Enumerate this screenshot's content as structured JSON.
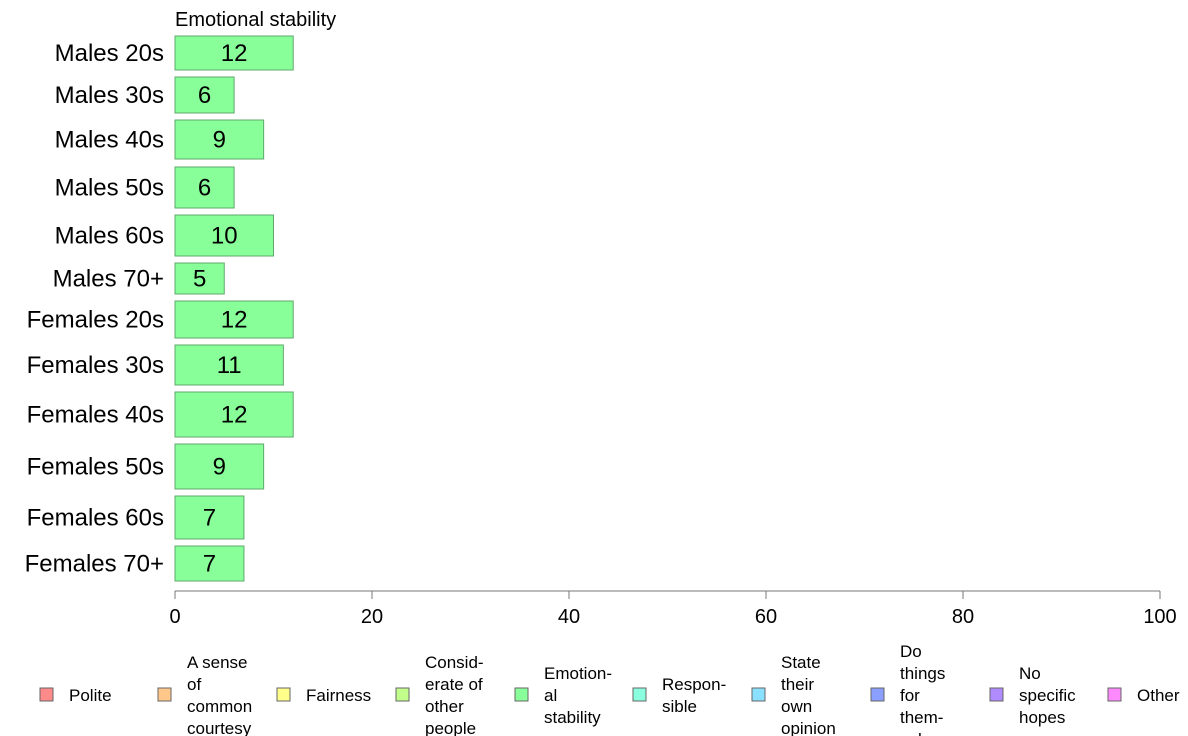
{
  "chart_data": {
    "type": "bar",
    "orientation": "horizontal",
    "title": "Emotional stability",
    "categories": [
      "Males 20s",
      "Males 30s",
      "Males 40s",
      "Males 50s",
      "Males 60s",
      "Males 70+",
      "Females 20s",
      "Females 30s",
      "Females 40s",
      "Females 50s",
      "Females 60s",
      "Females 70+"
    ],
    "values": [
      12,
      6,
      9,
      6,
      10,
      5,
      12,
      11,
      12,
      9,
      7,
      7
    ],
    "xlim": [
      0,
      100
    ],
    "xticks": [
      0,
      20,
      40,
      60,
      80,
      100
    ],
    "bar_color": "#88ff99",
    "bar_stroke": "#5ea86b",
    "grid": false,
    "legend_position": "bottom",
    "legend": [
      {
        "name": "Polite",
        "color": "#ff8a8a"
      },
      {
        "name": "A sense of common courtesy",
        "color": "#ffc88a"
      },
      {
        "name": "Fairness",
        "color": "#ffff8a"
      },
      {
        "name": "Consid-erate of other people",
        "color": "#c2ff8a"
      },
      {
        "name": "Emotion-al stability",
        "color": "#88ff99"
      },
      {
        "name": "Respon-sible",
        "color": "#8affe0"
      },
      {
        "name": "State their own opinion",
        "color": "#8ae0ff"
      },
      {
        "name": "Do things for them-selves",
        "color": "#8a9fff"
      },
      {
        "name": "No specific hopes",
        "color": "#b08aff"
      },
      {
        "name": "Other",
        "color": "#ff8aff"
      }
    ]
  }
}
